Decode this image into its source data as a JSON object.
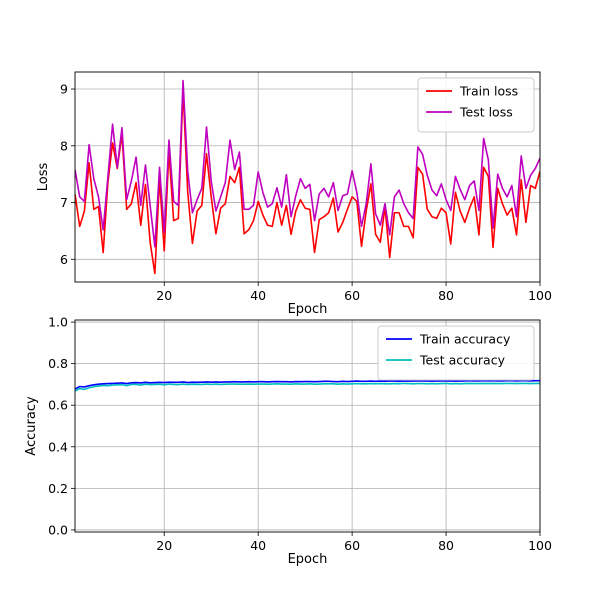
{
  "chart_data": [
    {
      "type": "line",
      "xlabel": "Epoch",
      "ylabel": "Loss",
      "xlim": [
        1,
        100
      ],
      "ylim": [
        5.6,
        9.3
      ],
      "xticks": [
        20,
        40,
        60,
        80,
        100
      ],
      "yticks": [
        6,
        7,
        8,
        9
      ],
      "grid": true,
      "legend_position": "top-right",
      "x_start": 1,
      "series": [
        {
          "name": "Train loss",
          "color": "#ff0000",
          "values": [
            7.15,
            6.58,
            6.85,
            7.7,
            6.88,
            6.93,
            6.12,
            7.35,
            8.05,
            7.6,
            8.2,
            6.88,
            6.98,
            7.35,
            6.6,
            7.32,
            6.3,
            5.75,
            7.42,
            6.15,
            7.9,
            6.68,
            6.72,
            8.98,
            7.18,
            6.28,
            6.85,
            6.95,
            7.86,
            7.1,
            6.45,
            6.9,
            6.98,
            7.46,
            7.35,
            7.62,
            6.45,
            6.52,
            6.68,
            7.02,
            6.78,
            6.6,
            6.58,
            7.0,
            6.6,
            6.95,
            6.44,
            6.85,
            7.05,
            6.9,
            6.88,
            6.12,
            6.7,
            6.75,
            6.82,
            7.08,
            6.48,
            6.65,
            6.88,
            7.1,
            7.02,
            6.23,
            6.85,
            7.33,
            6.44,
            6.3,
            6.92,
            6.03,
            6.82,
            6.82,
            6.58,
            6.58,
            6.38,
            7.62,
            7.5,
            6.88,
            6.75,
            6.72,
            6.9,
            6.82,
            6.27,
            7.18,
            6.85,
            6.65,
            6.9,
            7.1,
            6.43,
            7.62,
            7.46,
            6.21,
            7.25,
            6.98,
            6.78,
            6.9,
            6.43,
            7.4,
            6.65,
            7.3,
            7.25,
            7.55
          ]
        },
        {
          "name": "Test loss",
          "color": "#bf00bf",
          "values": [
            7.58,
            7.1,
            7.02,
            8.02,
            7.42,
            7.1,
            6.52,
            7.45,
            8.38,
            7.62,
            8.32,
            7.05,
            7.38,
            7.8,
            6.95,
            7.66,
            6.95,
            6.22,
            7.62,
            6.48,
            8.1,
            7.02,
            6.95,
            9.15,
            7.55,
            6.82,
            7.05,
            7.25,
            8.33,
            7.38,
            6.85,
            7.1,
            7.35,
            8.1,
            7.58,
            7.89,
            6.88,
            6.88,
            6.95,
            7.54,
            7.18,
            6.92,
            6.98,
            7.26,
            6.92,
            7.49,
            6.75,
            7.12,
            7.42,
            7.25,
            7.32,
            6.68,
            7.15,
            7.25,
            7.1,
            7.35,
            6.86,
            7.12,
            7.15,
            7.56,
            7.18,
            6.58,
            6.98,
            7.68,
            6.8,
            6.6,
            6.98,
            6.43,
            7.1,
            7.22,
            6.98,
            6.82,
            6.72,
            7.98,
            7.85,
            7.48,
            7.22,
            7.12,
            7.33,
            7.05,
            6.86,
            7.46,
            7.23,
            7.05,
            7.3,
            7.38,
            6.86,
            8.13,
            7.75,
            6.55,
            7.5,
            7.25,
            7.1,
            7.3,
            6.75,
            7.82,
            7.25,
            7.48,
            7.6,
            7.78
          ]
        }
      ]
    },
    {
      "type": "line",
      "xlabel": "Epoch",
      "ylabel": "Accuracy",
      "xlim": [
        1,
        100
      ],
      "ylim": [
        -0.01,
        1.01
      ],
      "xticks": [
        20,
        40,
        60,
        80,
        100
      ],
      "yticks": [
        0.0,
        0.2,
        0.4,
        0.6,
        0.8,
        1.0
      ],
      "grid": true,
      "legend_position": "top-right",
      "x_start": 1,
      "series": [
        {
          "name": "Train accuracy",
          "color": "#0000ff",
          "values": [
            0.678,
            0.69,
            0.688,
            0.694,
            0.698,
            0.701,
            0.703,
            0.704,
            0.705,
            0.706,
            0.707,
            0.704,
            0.708,
            0.709,
            0.707,
            0.71,
            0.708,
            0.709,
            0.71,
            0.709,
            0.711,
            0.71,
            0.71,
            0.712,
            0.709,
            0.711,
            0.71,
            0.711,
            0.712,
            0.711,
            0.712,
            0.711,
            0.712,
            0.712,
            0.713,
            0.712,
            0.712,
            0.713,
            0.712,
            0.713,
            0.713,
            0.712,
            0.713,
            0.714,
            0.713,
            0.713,
            0.712,
            0.714,
            0.713,
            0.714,
            0.714,
            0.713,
            0.714,
            0.715,
            0.715,
            0.714,
            0.713,
            0.715,
            0.714,
            0.715,
            0.716,
            0.715,
            0.715,
            0.716,
            0.715,
            0.716,
            0.715,
            0.716,
            0.716,
            0.715,
            0.717,
            0.716,
            0.716,
            0.717,
            0.717,
            0.716,
            0.717,
            0.716,
            0.717,
            0.717,
            0.716,
            0.717,
            0.716,
            0.717,
            0.718,
            0.717,
            0.717,
            0.718,
            0.717,
            0.718,
            0.717,
            0.717,
            0.718,
            0.718,
            0.717,
            0.718,
            0.718,
            0.717,
            0.718,
            0.718
          ]
        },
        {
          "name": "Test accuracy",
          "color": "#00bfbf",
          "values": [
            0.668,
            0.68,
            0.676,
            0.684,
            0.689,
            0.692,
            0.695,
            0.694,
            0.697,
            0.698,
            0.699,
            0.694,
            0.7,
            0.7,
            0.697,
            0.701,
            0.699,
            0.7,
            0.701,
            0.698,
            0.702,
            0.7,
            0.699,
            0.702,
            0.699,
            0.701,
            0.7,
            0.7,
            0.702,
            0.7,
            0.702,
            0.7,
            0.701,
            0.702,
            0.702,
            0.701,
            0.701,
            0.702,
            0.701,
            0.702,
            0.702,
            0.701,
            0.702,
            0.703,
            0.702,
            0.702,
            0.701,
            0.703,
            0.702,
            0.702,
            0.703,
            0.701,
            0.702,
            0.703,
            0.703,
            0.703,
            0.701,
            0.703,
            0.702,
            0.703,
            0.704,
            0.703,
            0.703,
            0.704,
            0.703,
            0.704,
            0.703,
            0.703,
            0.704,
            0.703,
            0.705,
            0.704,
            0.703,
            0.704,
            0.704,
            0.703,
            0.704,
            0.703,
            0.704,
            0.705,
            0.703,
            0.704,
            0.703,
            0.704,
            0.705,
            0.704,
            0.704,
            0.705,
            0.704,
            0.705,
            0.704,
            0.704,
            0.705,
            0.705,
            0.704,
            0.705,
            0.705,
            0.704,
            0.705,
            0.705
          ]
        }
      ]
    }
  ]
}
